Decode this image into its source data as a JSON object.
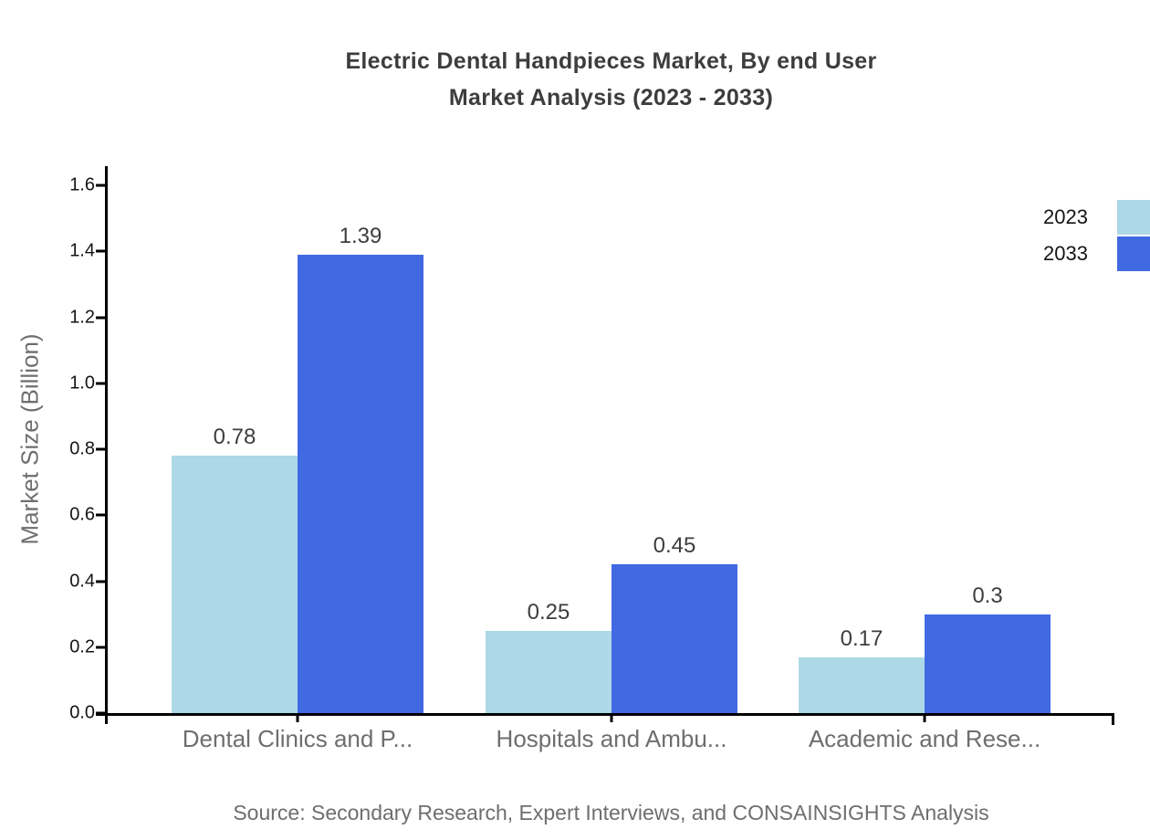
{
  "title": {
    "line1": "Electric Dental Handpieces Market, By end User",
    "line2": "Market Analysis (2023 - 2033)"
  },
  "y_axis": {
    "label": "Market Size (Billion)"
  },
  "source_note": "Source: Secondary Research, Expert Interviews, and CONSAINSIGHTS Analysis",
  "legend": {
    "items": [
      {
        "label": "2023",
        "color": "#add8e6"
      },
      {
        "label": "2033",
        "color": "#4169e1"
      }
    ]
  },
  "chart_data": {
    "type": "bar",
    "title": "Electric Dental Handpieces Market, By end User Market Analysis (2023 - 2033)",
    "categories": [
      "Dental Clinics and P...",
      "Hospitals and Ambu...",
      "Academic and Rese..."
    ],
    "series": [
      {
        "name": "2023",
        "color": "#add8e6",
        "values": [
          0.78,
          0.25,
          0.17
        ]
      },
      {
        "name": "2033",
        "color": "#4169e1",
        "values": [
          1.39,
          0.45,
          0.3
        ]
      }
    ],
    "xlabel": "",
    "ylabel": "Market Size (Billion)",
    "ylim": [
      0,
      1.6
    ],
    "yticks": [
      0.0,
      0.2,
      0.4,
      0.6,
      0.8,
      1.0,
      1.2,
      1.4,
      1.6
    ],
    "grid": false,
    "legend_position": "top-right",
    "value_labels": true
  }
}
